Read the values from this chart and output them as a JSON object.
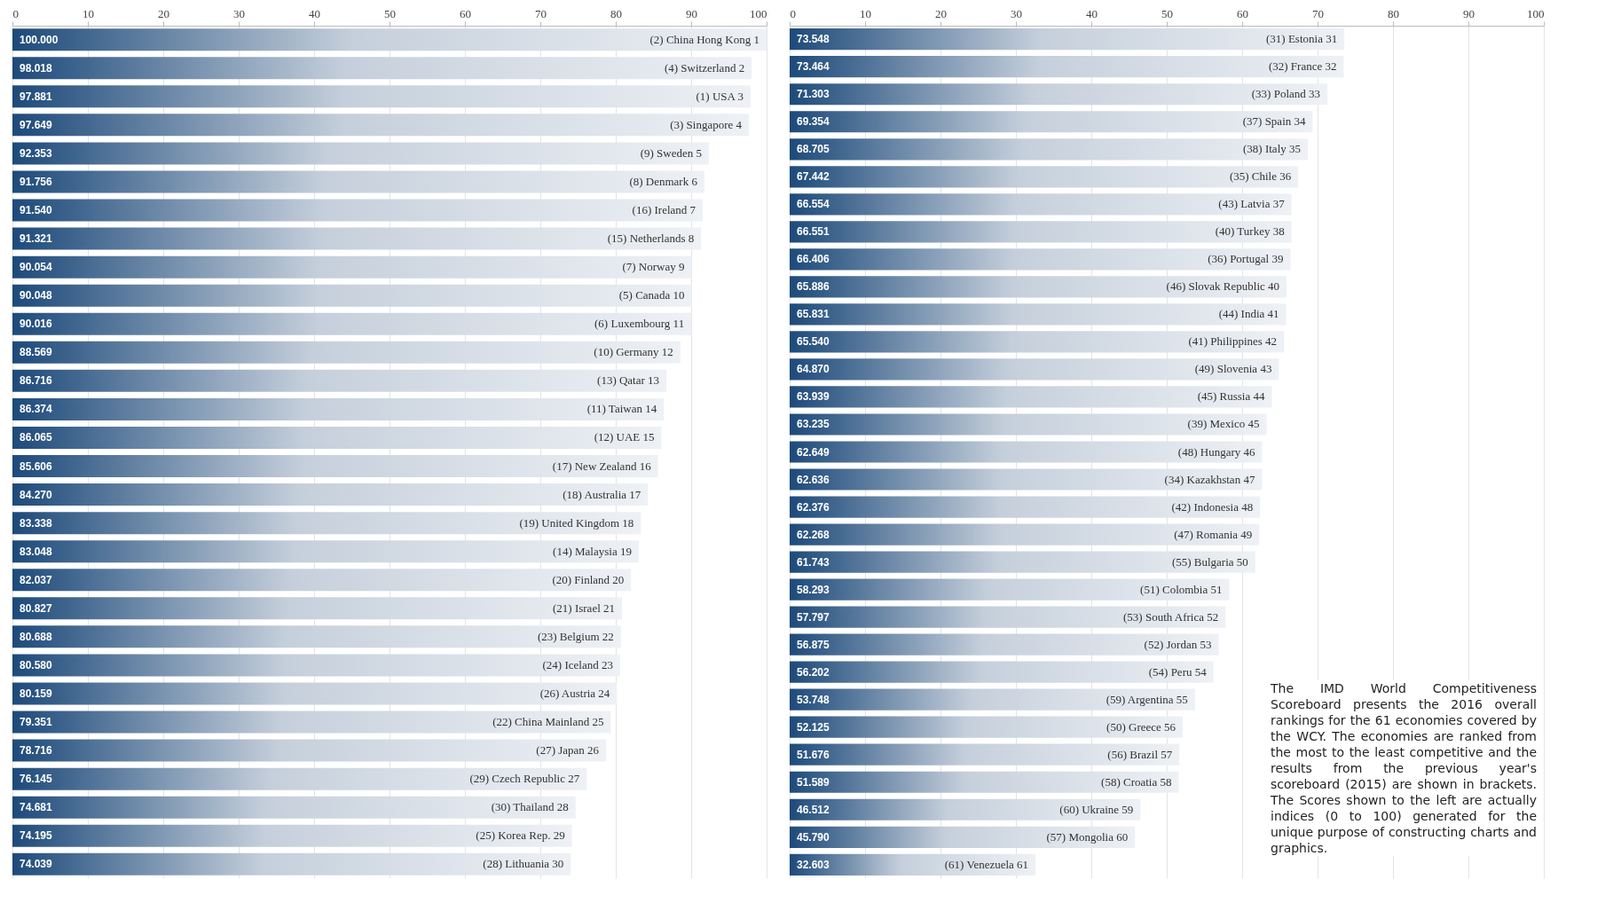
{
  "chart_data": [
    {
      "type": "bar",
      "orientation": "horizontal",
      "color": "#1d4a7a",
      "xlim": [
        0,
        100
      ],
      "xticks": [
        0,
        10,
        20,
        30,
        40,
        50,
        60,
        70,
        80,
        90,
        100
      ],
      "grid": "x",
      "tick_labels": "x",
      "categories": [
        "(2) China Hong Kong 1",
        "(4) Switzerland 2",
        "(1) USA 3",
        "(3) Singapore 4",
        "(9) Sweden 5",
        "(8) Denmark 6",
        "(16) Ireland 7",
        "(15) Netherlands 8",
        "(7) Norway 9",
        "(5) Canada 10",
        "(6) Luxembourg 11",
        "(10) Germany 12",
        "(13) Qatar 13",
        "(11) Taiwan 14",
        "(12) UAE 15",
        "(17) New Zealand 16",
        "(18) Australia 17",
        "(19) United Kingdom 18",
        "(14) Malaysia 19",
        "(20) Finland 20",
        "(21) Israel 21",
        "(23) Belgium 22",
        "(24) Iceland 23",
        "(26) Austria 24",
        "(22) China Mainland 25",
        "(27) Japan 26",
        "(29) Czech Republic 27",
        "(30) Thailand 28",
        "(25) Korea Rep. 29",
        "(28) Lithuania 30"
      ],
      "values": [
        100.0,
        98.018,
        97.881,
        97.649,
        92.353,
        91.756,
        91.54,
        91.321,
        90.054,
        90.048,
        90.016,
        88.569,
        86.716,
        86.374,
        86.065,
        85.606,
        84.27,
        83.338,
        83.048,
        82.037,
        80.827,
        80.688,
        80.58,
        80.159,
        79.351,
        78.716,
        76.145,
        74.681,
        74.195,
        74.039
      ],
      "value_labels": [
        "100.000",
        "98.018",
        "97.881",
        "97.649",
        "92.353",
        "91.756",
        "91.540",
        "91.321",
        "90.054",
        "90.048",
        "90.016",
        "88.569",
        "86.716",
        "86.374",
        "86.065",
        "85.606",
        "84.270",
        "83.338",
        "83.048",
        "82.037",
        "80.827",
        "80.688",
        "80.580",
        "80.159",
        "79.351",
        "78.716",
        "76.145",
        "74.681",
        "74.195",
        "74.039"
      ]
    },
    {
      "type": "bar",
      "orientation": "horizontal",
      "color": "#1d4a7a",
      "xlim": [
        0,
        100
      ],
      "xticks": [
        0,
        10,
        20,
        30,
        40,
        50,
        60,
        70,
        80,
        90,
        100
      ],
      "grid": "x",
      "tick_labels": "x",
      "categories": [
        "(31) Estonia 31",
        "(32) France 32",
        "(33) Poland 33",
        "(37) Spain 34",
        "(38) Italy 35",
        "(35) Chile 36",
        "(43) Latvia 37",
        "(40) Turkey 38",
        "(36) Portugal 39",
        "(46) Slovak Republic 40",
        "(44) India 41",
        "(41) Philippines 42",
        "(49) Slovenia 43",
        "(45) Russia 44",
        "(39) Mexico 45",
        "(48) Hungary 46",
        "(34) Kazakhstan 47",
        "(42) Indonesia 48",
        "(47) Romania 49",
        "(55) Bulgaria 50",
        "(51) Colombia 51",
        "(53) South Africa 52",
        "(52) Jordan 53",
        "(54) Peru 54",
        "(59) Argentina 55",
        "(50) Greece 56",
        "(56) Brazil 57",
        "(58) Croatia 58",
        "(60) Ukraine 59",
        "(57) Mongolia 60",
        "(61) Venezuela 61"
      ],
      "values": [
        73.548,
        73.464,
        71.303,
        69.354,
        68.705,
        67.442,
        66.554,
        66.551,
        66.406,
        65.886,
        65.831,
        65.54,
        64.87,
        63.939,
        63.235,
        62.649,
        62.636,
        62.376,
        62.268,
        61.743,
        58.293,
        57.797,
        56.875,
        56.202,
        53.748,
        52.125,
        51.676,
        51.589,
        46.512,
        45.79,
        32.603
      ],
      "value_labels": [
        "73.548",
        "73.464",
        "71.303",
        "69.354",
        "68.705",
        "67.442",
        "66.554",
        "66.551",
        "66.406",
        "65.886",
        "65.831",
        "65.540",
        "64.870",
        "63.939",
        "63.235",
        "62.649",
        "62.636",
        "62.376",
        "62.268",
        "61.743",
        "58.293",
        "57.797",
        "56.875",
        "56.202",
        "53.748",
        "52.125",
        "51.676",
        "51.589",
        "46.512",
        "45.790",
        "32.603"
      ],
      "annotations": [
        "The IMD World Competitiveness Scoreboard presents the 2016 overall rankings for the 61 economies covered by the WCY. The economies are ranked from the most to the least competitive and the results from the previous year's scoreboard (2015) are shown in brackets. The Scores shown to the left are actually indices (0 to 100) generated for the unique purpose of constructing charts and graphics."
      ]
    }
  ]
}
